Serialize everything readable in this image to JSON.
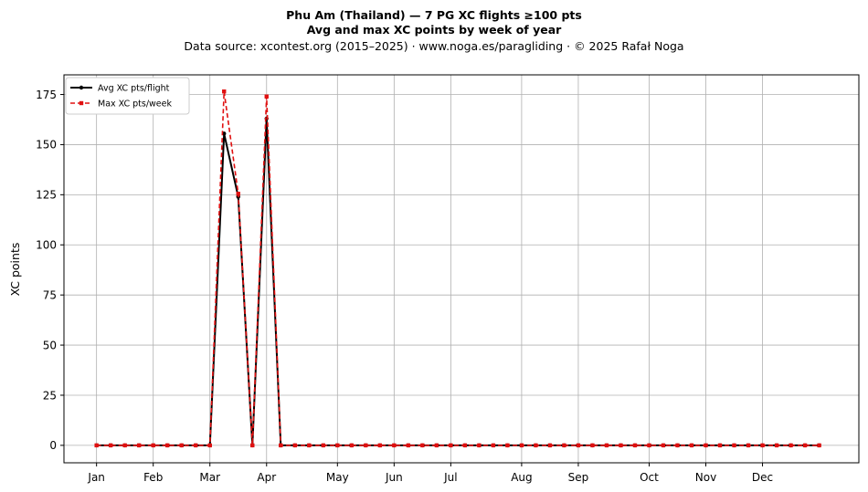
{
  "chart_data": {
    "type": "line",
    "title": "Phu Am (Thailand)  —  7 PG XC flights ≥100 pts",
    "title_line2": "Avg and max XC points by week of year",
    "subtitle": "Data source: xcontest.org (2015–2025)  ·  www.noga.es/paragliding  ·  © 2025 Rafał Noga",
    "ylabel": "XC points",
    "xlabel": "",
    "xlim": [
      -2.3,
      53.8
    ],
    "ylim": [
      -8.7,
      184.8
    ],
    "yticks": [
      0,
      25,
      50,
      75,
      100,
      125,
      150,
      175
    ],
    "xticks": [
      {
        "label": "Jan",
        "value": 0
      },
      {
        "label": "Feb",
        "value": 4
      },
      {
        "label": "Mar",
        "value": 8
      },
      {
        "label": "Apr",
        "value": 12
      },
      {
        "label": "May",
        "value": 17
      },
      {
        "label": "Jun",
        "value": 21
      },
      {
        "label": "Jul",
        "value": 25
      },
      {
        "label": "Aug",
        "value": 30
      },
      {
        "label": "Sep",
        "value": 34
      },
      {
        "label": "Oct",
        "value": 39
      },
      {
        "label": "Nov",
        "value": 43
      },
      {
        "label": "Dec",
        "value": 47
      }
    ],
    "grid": true,
    "legend_position": "top-left",
    "series": [
      {
        "name": "Avg XC pts/flight",
        "color": "#000000",
        "style": "solid",
        "marker": "circle",
        "x": [
          0,
          1,
          2,
          3,
          4,
          5,
          6,
          7,
          8,
          9,
          10,
          11,
          12,
          13,
          14,
          15,
          16,
          17,
          18,
          19,
          20,
          21,
          22,
          23,
          24,
          25,
          26,
          27,
          28,
          29,
          30,
          31,
          32,
          33,
          34,
          35,
          36,
          37,
          38,
          39,
          40,
          41,
          42,
          43,
          44,
          45,
          46,
          47,
          48,
          49,
          50,
          51
        ],
        "values": [
          0,
          0,
          0,
          0,
          0,
          0,
          0,
          0,
          0,
          155.5,
          124,
          0,
          163,
          0,
          0,
          0,
          0,
          0,
          0,
          0,
          0,
          0,
          0,
          0,
          0,
          0,
          0,
          0,
          0,
          0,
          0,
          0,
          0,
          0,
          0,
          0,
          0,
          0,
          0,
          0,
          0,
          0,
          0,
          0,
          0,
          0,
          0,
          0,
          0,
          0,
          0,
          0
        ]
      },
      {
        "name": "Max XC pts/week",
        "color": "#e01010",
        "style": "dashed",
        "marker": "square",
        "x": [
          0,
          1,
          2,
          3,
          4,
          5,
          6,
          7,
          8,
          9,
          10,
          11,
          12,
          13,
          14,
          15,
          16,
          17,
          18,
          19,
          20,
          21,
          22,
          23,
          24,
          25,
          26,
          27,
          28,
          29,
          30,
          31,
          32,
          33,
          34,
          35,
          36,
          37,
          38,
          39,
          40,
          41,
          42,
          43,
          44,
          45,
          46,
          47,
          48,
          49,
          50,
          51
        ],
        "values": [
          0,
          0,
          0,
          0,
          0,
          0,
          0,
          0,
          0,
          176.5,
          125.5,
          0,
          174,
          0,
          0,
          0,
          0,
          0,
          0,
          0,
          0,
          0,
          0,
          0,
          0,
          0,
          0,
          0,
          0,
          0,
          0,
          0,
          0,
          0,
          0,
          0,
          0,
          0,
          0,
          0,
          0,
          0,
          0,
          0,
          0,
          0,
          0,
          0,
          0,
          0,
          0,
          0
        ]
      }
    ]
  }
}
